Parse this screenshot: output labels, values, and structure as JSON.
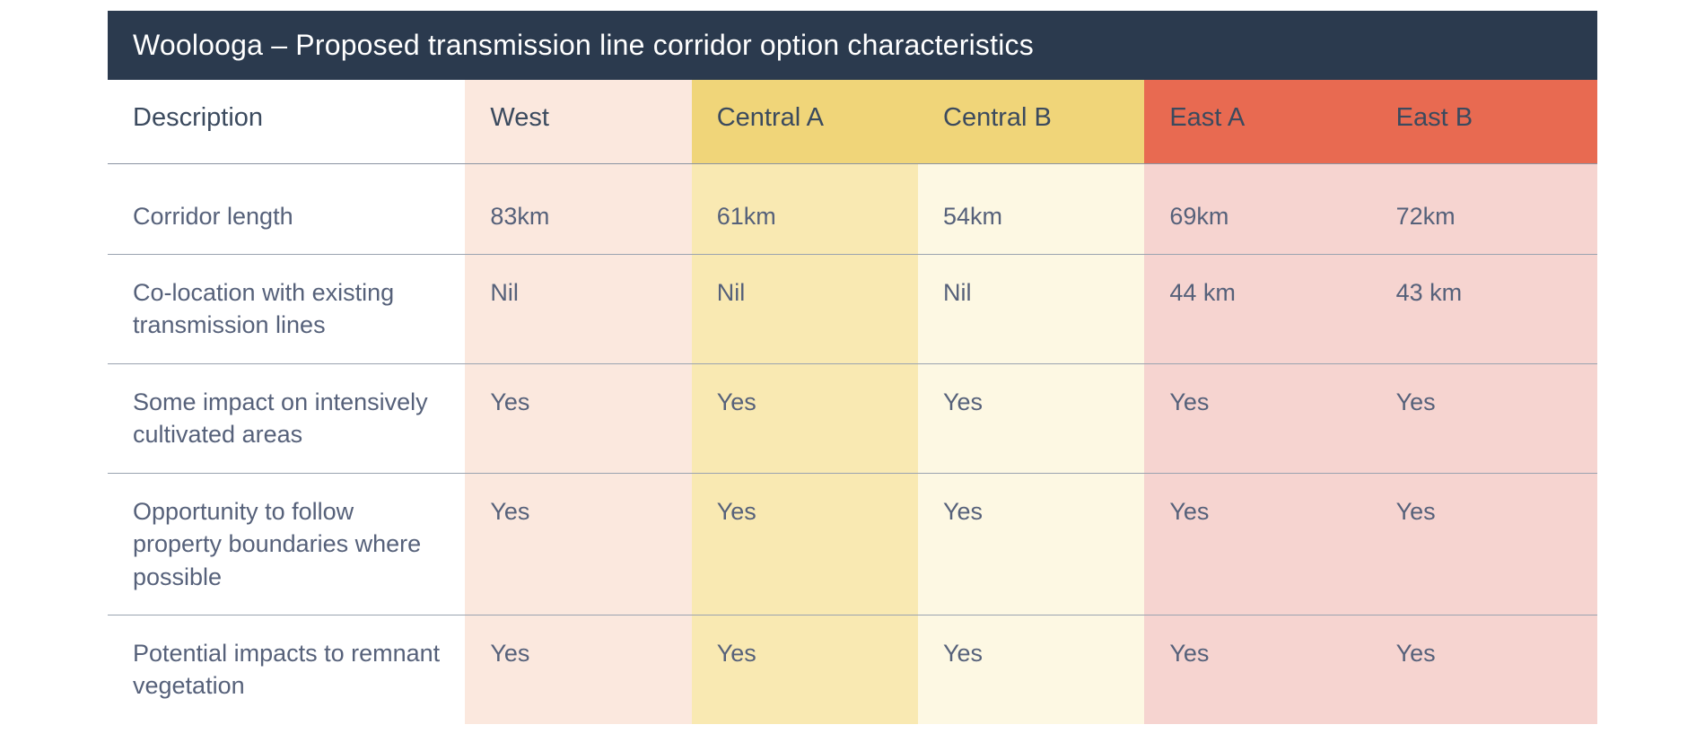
{
  "table": {
    "title": "Woolooga – Proposed transmission line corridor option characteristics",
    "title_bg": "#2b3a4e",
    "title_color": "#ffffff",
    "colors": {
      "desc_bg": "#ffffff",
      "west_bg": "#fbe8de",
      "central_header_bg": "#f0d579",
      "central_a_body_bg": "#f9e9b2",
      "central_b_body_bg": "#fdf8e3",
      "east_header_bg": "#e86a51",
      "east_body_bg": "#f6d4d0",
      "row_border": "#9aa3b0",
      "header_border": "#8a94a2",
      "text_color": "#56617a",
      "header_text_color": "#3b4a5e"
    },
    "columns": [
      {
        "key": "description",
        "label": "Description"
      },
      {
        "key": "west",
        "label": "West"
      },
      {
        "key": "central_a",
        "label": "Central A"
      },
      {
        "key": "central_b",
        "label": "Central B"
      },
      {
        "key": "east_a",
        "label": "East A"
      },
      {
        "key": "east_b",
        "label": "East B"
      }
    ],
    "rows": [
      {
        "description": "Corridor length",
        "west": "83km",
        "central_a": "61km",
        "central_b": "54km",
        "east_a": "69km",
        "east_b": "72km"
      },
      {
        "description": "Co-location with existing transmission lines",
        "west": "Nil",
        "central_a": "Nil",
        "central_b": "Nil",
        "east_a": "44 km",
        "east_b": "43 km"
      },
      {
        "description": "Some impact on intensively cultivated areas",
        "west": "Yes",
        "central_a": "Yes",
        "central_b": "Yes",
        "east_a": "Yes",
        "east_b": "Yes"
      },
      {
        "description": "Opportunity to follow property boundaries where possible",
        "west": "Yes",
        "central_a": "Yes",
        "central_b": "Yes",
        "east_a": "Yes",
        "east_b": "Yes"
      },
      {
        "description": "Potential impacts to remnant vegetation",
        "west": "Yes",
        "central_a": "Yes",
        "central_b": "Yes",
        "east_a": "Yes",
        "east_b": "Yes"
      }
    ]
  }
}
